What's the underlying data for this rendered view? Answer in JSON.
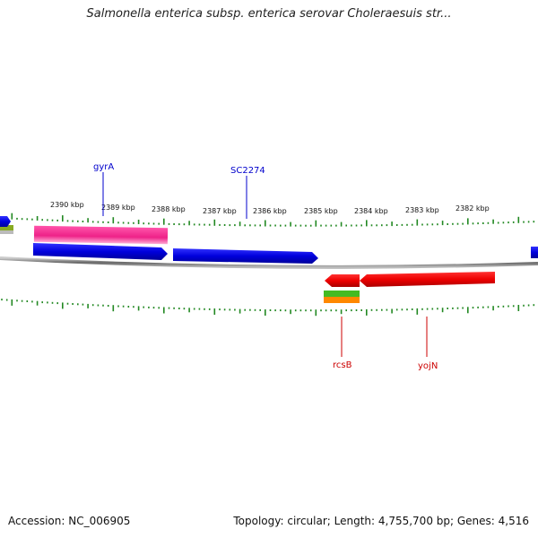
{
  "title": "Salmonella enterica subsp. enterica serovar Choleraesuis str...",
  "accession": "Accession: NC_006905",
  "summary": "Topology: circular; Length: 4,755,700 bp; Genes: 4,516",
  "scale": {
    "labels": [
      "2390 kbp",
      "2389 kbp",
      "2388 kbp",
      "2387 kbp",
      "2386 kbp",
      "2385 kbp",
      "2384 kbp",
      "2383 kbp",
      "2382 kbp"
    ]
  },
  "genes": {
    "forward": [
      "gyrA",
      "SC2274"
    ],
    "reverse": [
      "rcsB",
      "yojN"
    ]
  },
  "colors": {
    "forward_gene": "#0000ee",
    "reverse_gene": "#ee0000",
    "pink_feature": "#ee3399",
    "tick": "#228822",
    "backbone": "#888888",
    "green_feature": "#44bb22",
    "orange_feature": "#ff8800"
  }
}
